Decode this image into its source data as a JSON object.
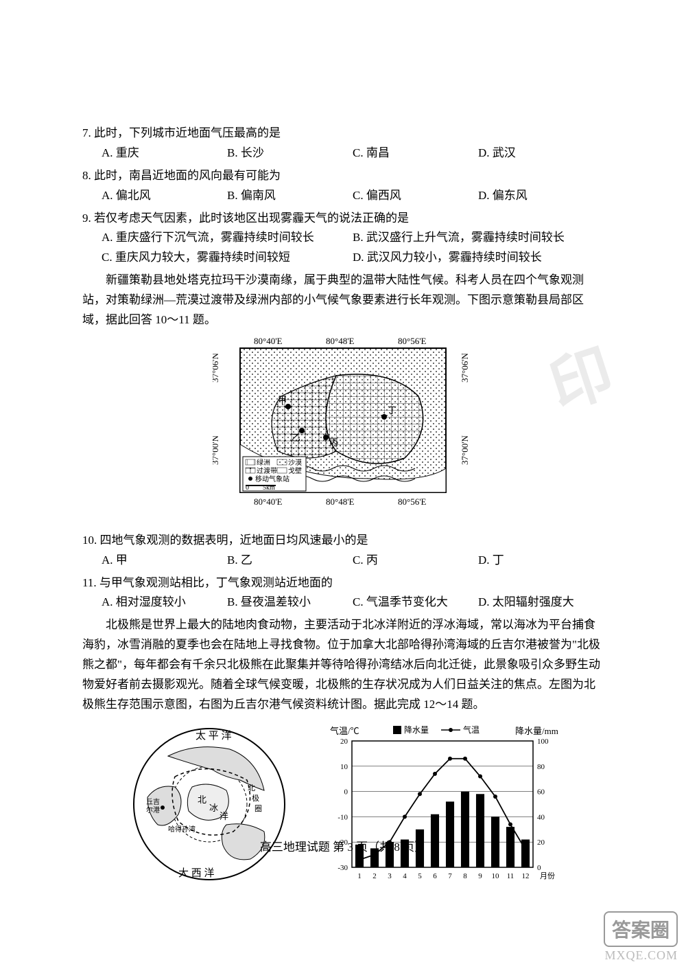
{
  "q7": {
    "stem": "7. 此时，下列城市近地面气压最高的是",
    "opts": {
      "A": "A. 重庆",
      "B": "B. 长沙",
      "C": "C. 南昌",
      "D": "D. 武汉"
    }
  },
  "q8": {
    "stem": "8. 此时，南昌近地面的风向最有可能为",
    "opts": {
      "A": "A. 偏北风",
      "B": "B. 偏南风",
      "C": "C. 偏西风",
      "D": "D. 偏东风"
    }
  },
  "q9": {
    "stem": "9. 若仅考虑天气因素，此时该地区出现雾霾天气的说法正确的是",
    "opts": {
      "A": "A. 重庆盛行下沉气流，雾霾持续时间较长",
      "B": "B. 武汉盛行上升气流，雾霾持续时间较长",
      "C": "C. 重庆风力较大，雾霾持续时间较短",
      "D": "D. 武汉风力较小，雾霾持续时间较长"
    }
  },
  "passage1": "新疆策勒县地处塔克拉玛干沙漠南缘，属于典型的温带大陆性气候。科考人员在四个气象观测站，对策勒绿洲—荒漠过渡带及绿洲内部的小气候气象要素进行长年观测。下图示意策勒县局部区域，据此回答 10～11 题。",
  "map": {
    "lon_labels": [
      "80°40'E",
      "80°48'E",
      "80°56'E"
    ],
    "lat_labels": [
      "37°06'N",
      "37°00'N"
    ],
    "legend": [
      "绿洲",
      "沙漠",
      "过渡带",
      "戈壁",
      "移动气象站"
    ],
    "scale": "5km",
    "points": [
      "甲",
      "乙",
      "丙",
      "丁"
    ],
    "colors": {
      "outline": "#000000",
      "fill_light": "#ffffff",
      "hatch": "#000000"
    }
  },
  "q10": {
    "stem": "10. 四地气象观测的数据表明，近地面日均风速最小的是",
    "opts": {
      "A": "A. 甲",
      "B": "B. 乙",
      "C": "C. 丙",
      "D": "D. 丁"
    }
  },
  "q11": {
    "stem": "11. 与甲气象观测站相比，丁气象观测站近地面的",
    "opts": {
      "A": "A. 相对湿度较小",
      "B": "B. 昼夜温差较小",
      "C": "C. 气温季节变化大",
      "D": "D. 太阳辐射强度大"
    }
  },
  "passage2": "北极熊是世界上最大的陆地肉食动物，主要活动于北冰洋附近的浮冰海域，常以海冰为平台捕食海豹，冰雪消融的夏季也会在陆地上寻找食物。位于加拿大北部哈得孙湾海域的丘吉尔港被誉为\"北极熊之都\"，每年都会有千余只北极熊在此聚集并等待哈得孙湾结冰后向北迁徙，此景象吸引众多野生动物爱好者前去摄影观光。随着全球气候变暖，北极熊的生存状况成为人们日益关注的焦点。左图为北极熊生存范围示意图，右图为丘吉尔港气候资料统计图。据此完成 12～14 题。",
  "globe": {
    "labels": [
      "太平洋",
      "北冰洋",
      "北极圈",
      "大西洋",
      "丘吉尔港",
      "哈得孙湾"
    ]
  },
  "climate_chart": {
    "type": "combo-bar-line",
    "title_left": "气温/℃",
    "title_right": "降水量/mm",
    "legend": {
      "bar": "降水量",
      "line": "气温"
    },
    "x_labels": [
      "1",
      "2",
      "3",
      "4",
      "5",
      "6",
      "7",
      "8",
      "9",
      "10",
      "11",
      "12",
      "月份"
    ],
    "temp_yticks": [
      -30,
      -20,
      -10,
      0,
      10,
      20
    ],
    "temp_ylim": [
      -30,
      20
    ],
    "precip_yticks": [
      0,
      20,
      40,
      60,
      80,
      100
    ],
    "precip_ylim": [
      0,
      100
    ],
    "precip_values": [
      18,
      15,
      20,
      22,
      30,
      42,
      52,
      60,
      58,
      40,
      32,
      22
    ],
    "temp_values": [
      -27,
      -25,
      -20,
      -10,
      -1,
      7,
      13,
      13,
      6,
      -2,
      -13,
      -23
    ],
    "colors": {
      "bar_fill": "#000000",
      "line": "#000000",
      "axis": "#000000",
      "grid": "#000000",
      "bg": "#ffffff"
    },
    "bar_width": 0.55,
    "font_size": 11
  },
  "footer": "高三地理试题  第 3 页（共 8 页）",
  "watermark_text": "印",
  "brand_box": "答案圈",
  "brand_url": "MXQE.COM"
}
